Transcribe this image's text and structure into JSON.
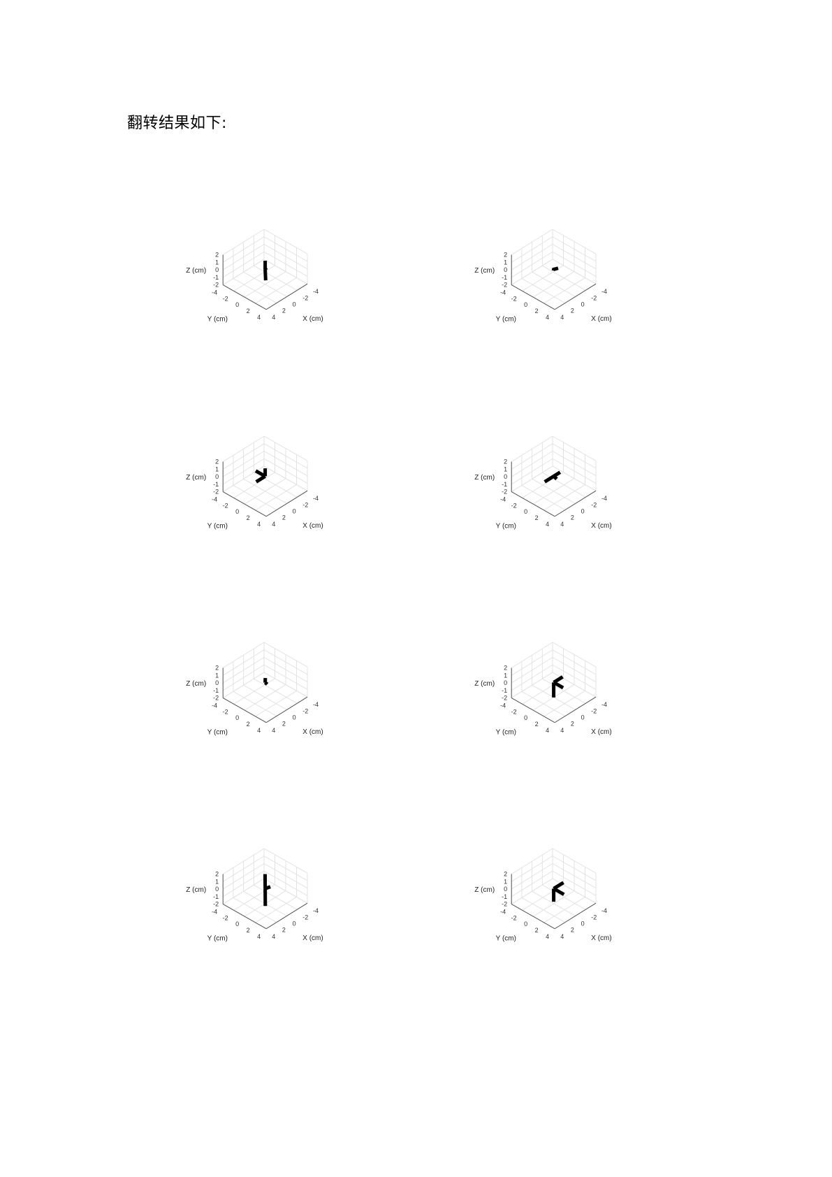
{
  "heading": "翻转结果如下:",
  "chart_data": [
    {
      "type": "line3d",
      "xlabel": "X (cm)",
      "ylabel": "Y (cm)",
      "zlabel": "Z (cm)",
      "xticks": [
        "-4",
        "-2",
        "0",
        "2",
        "4"
      ],
      "yticks": [
        "-4",
        "-2",
        "0",
        "2",
        "4"
      ],
      "zticks": [
        "-2",
        "-1",
        "0",
        "1",
        "2"
      ],
      "xlim": [
        -4,
        4
      ],
      "ylim": [
        -4,
        4
      ],
      "zlim": [
        -2,
        2
      ],
      "segments": [
        [
          [
            0.0,
            0.0,
            0.0
          ],
          [
            0.0,
            0.0,
            1.15
          ]
        ],
        [
          [
            0.0,
            0.0,
            0.0
          ],
          [
            1.75,
            1.75,
            0.0
          ]
        ],
        [
          [
            0.0,
            0.0,
            0.0
          ],
          [
            -1.0,
            -0.75,
            -0.5
          ]
        ]
      ]
    },
    {
      "type": "line3d",
      "xlabel": "X (cm)",
      "ylabel": "Y (cm)",
      "zlabel": "Z (cm)",
      "xticks": [
        "-4",
        "-2",
        "0",
        "2",
        "4"
      ],
      "yticks": [
        "-4",
        "-2",
        "0",
        "2",
        "4"
      ],
      "zticks": [
        "-2",
        "-1",
        "0",
        "1",
        "2"
      ],
      "xlim": [
        -4,
        4
      ],
      "ylim": [
        -4,
        4
      ],
      "zlim": [
        -2,
        2
      ],
      "segments": [
        [
          [
            0.0,
            0.0,
            0.0
          ],
          [
            1.0,
            1.0,
            1.0
          ]
        ],
        [
          [
            0.0,
            0.0,
            0.0
          ],
          [
            -1.0,
            -1.0,
            -1.0
          ]
        ],
        [
          [
            0.0,
            0.0,
            0.0
          ],
          [
            -0.6,
            0.25,
            0.0
          ]
        ]
      ]
    },
    {
      "type": "line3d",
      "xlabel": "X (cm)",
      "ylabel": "Y (cm)",
      "zlabel": "Z (cm)",
      "xticks": [
        "-4",
        "-2",
        "0",
        "2",
        "4"
      ],
      "yticks": [
        "-4",
        "-2",
        "0",
        "2",
        "4"
      ],
      "zticks": [
        "-2",
        "-1",
        "0",
        "1",
        "2"
      ],
      "xlim": [
        -4,
        4
      ],
      "ylim": [
        -4,
        4
      ],
      "zlim": [
        -2,
        2
      ],
      "segments": [
        [
          [
            0.0,
            0.0,
            0.0
          ],
          [
            1.75,
            0.0,
            0.0
          ]
        ],
        [
          [
            0.0,
            0.0,
            0.0
          ],
          [
            0.0,
            -1.75,
            0.0
          ]
        ],
        [
          [
            0.0,
            0.0,
            0.0
          ],
          [
            0.0,
            0.0,
            1.05
          ]
        ]
      ]
    },
    {
      "type": "line3d",
      "xlabel": "X (cm)",
      "ylabel": "Y (cm)",
      "zlabel": "Z (cm)",
      "xticks": [
        "-4",
        "-2",
        "0",
        "2",
        "4"
      ],
      "yticks": [
        "-4",
        "-2",
        "0",
        "2",
        "4"
      ],
      "zticks": [
        "-2",
        "-1",
        "0",
        "1",
        "2"
      ],
      "xlim": [
        -4,
        4
      ],
      "ylim": [
        -4,
        4
      ],
      "zlim": [
        -2,
        2
      ],
      "segments": [
        [
          [
            0.0,
            0.0,
            0.0
          ],
          [
            -1.25,
            0.0,
            0.0
          ]
        ],
        [
          [
            0.0,
            0.0,
            0.0
          ],
          [
            1.75,
            0.0,
            0.0
          ]
        ],
        [
          [
            0.0,
            0.0,
            0.0
          ],
          [
            -0.7,
            -0.1,
            -0.7
          ]
        ]
      ]
    },
    {
      "type": "line3d",
      "xlabel": "X (cm)",
      "ylabel": "Y (cm)",
      "zlabel": "Z (cm)",
      "xticks": [
        "-4",
        "-2",
        "0",
        "2",
        "4"
      ],
      "yticks": [
        "-4",
        "-2",
        "0",
        "2",
        "4"
      ],
      "zticks": [
        "-2",
        "-1",
        "0",
        "1",
        "2"
      ],
      "xlim": [
        -4,
        4
      ],
      "ylim": [
        -4,
        4
      ],
      "zlim": [
        -2,
        2
      ],
      "segments": [
        [
          [
            0.0,
            0.0,
            0.0
          ],
          [
            0.5,
            0.5,
            1.0
          ]
        ],
        [
          [
            0.0,
            0.0,
            0.0
          ],
          [
            -0.5,
            -0.1,
            -0.5
          ]
        ],
        [
          [
            0.0,
            0.0,
            0.0
          ],
          [
            -0.3,
            -0.3,
            -0.2
          ]
        ]
      ]
    },
    {
      "type": "line3d",
      "xlabel": "X (cm)",
      "ylabel": "Y (cm)",
      "zlabel": "Z (cm)",
      "xticks": [
        "-4",
        "-2",
        "0",
        "2",
        "4"
      ],
      "yticks": [
        "-4",
        "-2",
        "0",
        "2",
        "4"
      ],
      "zticks": [
        "-2",
        "-1",
        "0",
        "1",
        "2"
      ],
      "xlim": [
        -4,
        4
      ],
      "ylim": [
        -4,
        4
      ],
      "zlim": [
        -2,
        2
      ],
      "segments": [
        [
          [
            0.0,
            0.0,
            0.0
          ],
          [
            0.0,
            1.75,
            0.0
          ]
        ],
        [
          [
            0.0,
            0.0,
            0.0
          ],
          [
            -1.75,
            0.0,
            0.0
          ]
        ],
        [
          [
            0.0,
            0.0,
            0.0
          ],
          [
            0.0,
            0.0,
            -2.0
          ]
        ]
      ]
    },
    {
      "type": "line3d",
      "xlabel": "X (cm)",
      "ylabel": "Y (cm)",
      "zlabel": "Z (cm)",
      "xticks": [
        "-4",
        "-2",
        "0",
        "2",
        "4"
      ],
      "yticks": [
        "-4",
        "-2",
        "0",
        "2",
        "4"
      ],
      "zticks": [
        "-2",
        "-1",
        "0",
        "1",
        "2"
      ],
      "xlim": [
        -4,
        4
      ],
      "ylim": [
        -4,
        4
      ],
      "zlim": [
        -2,
        2
      ],
      "segments": [
        [
          [
            0.0,
            0.0,
            0.0
          ],
          [
            -0.4,
            -0.4,
            1.6
          ]
        ],
        [
          [
            0.0,
            0.0,
            0.0
          ],
          [
            0.5,
            0.5,
            -1.9
          ]
        ],
        [
          [
            0.0,
            0.0,
            0.0
          ],
          [
            -0.9,
            0.1,
            -0.1
          ]
        ]
      ]
    },
    {
      "type": "line3d",
      "xlabel": "X (cm)",
      "ylabel": "Y (cm)",
      "zlabel": "Z (cm)",
      "xticks": [
        "-4",
        "-2",
        "0",
        "2",
        "4"
      ],
      "yticks": [
        "-4",
        "-2",
        "0",
        "2",
        "4"
      ],
      "zticks": [
        "-2",
        "-1",
        "0",
        "1",
        "2"
      ],
      "xlim": [
        -4,
        4
      ],
      "ylim": [
        -4,
        4
      ],
      "zlim": [
        -2,
        2
      ],
      "segments": [
        [
          [
            0.0,
            0.0,
            0.0
          ],
          [
            0.0,
            1.9,
            0.0
          ]
        ],
        [
          [
            0.0,
            0.0,
            0.0
          ],
          [
            -1.9,
            0.0,
            0.0
          ]
        ],
        [
          [
            0.0,
            0.0,
            0.0
          ],
          [
            0.0,
            0.0,
            -1.75
          ]
        ]
      ]
    }
  ]
}
